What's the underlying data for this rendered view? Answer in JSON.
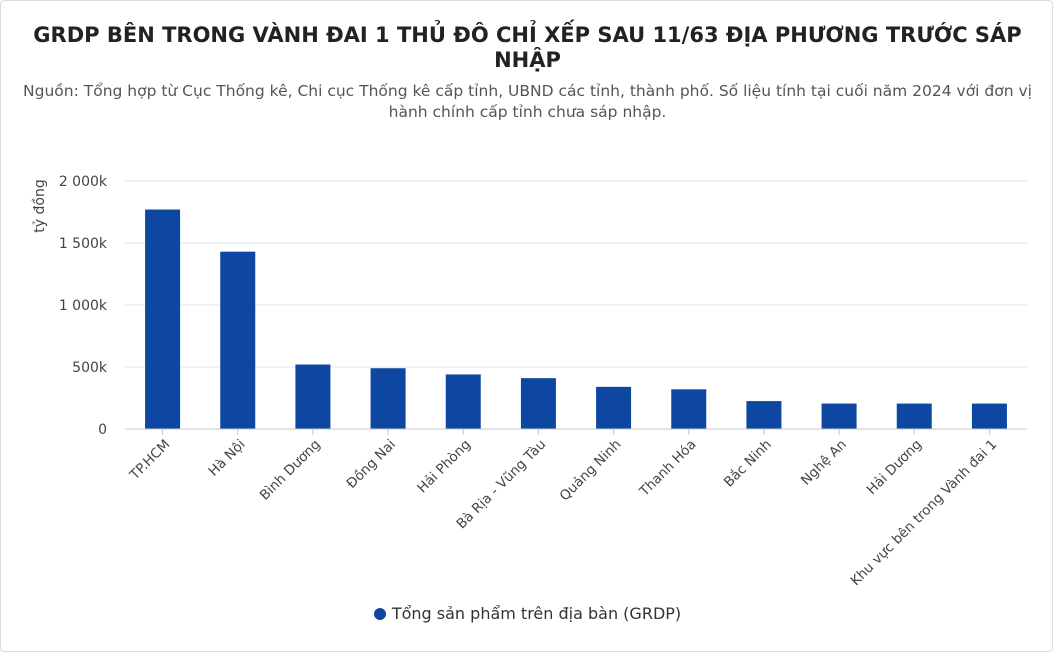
{
  "chart_data": {
    "type": "bar",
    "title": "GRDP BÊN TRONG VÀNH ĐAI 1 THỦ ĐÔ CHỈ XẾP SAU 11/63 ĐỊA PHƯƠNG TRƯỚC SÁP NHẬP",
    "subtitle_lines": [
      "Nguồn: Tổng hợp từ Cục Thống kê, Chi cục Thống kê cấp tỉnh, UBND các tỉnh, thành phố. Số liệu tính tại cuối năm 2024 với đơn vị",
      "hành chính cấp tỉnh chưa sáp nhập."
    ],
    "ylabel": "tỷ đồng",
    "xlabel": "",
    "ylim": [
      0,
      2000000
    ],
    "yticks": [
      0,
      500000,
      1000000,
      1500000,
      2000000
    ],
    "ytick_labels": [
      "0",
      "500k",
      "1 000k",
      "1 500k",
      "2 000k"
    ],
    "grid": true,
    "legend_position": "bottom",
    "categories": [
      "TP.HCM",
      "Hà Nội",
      "Bình Dương",
      "Đồng Nai",
      "Hải Phòng",
      "Bà Rịa - Vũng Tàu",
      "Quảng Ninh",
      "Thanh Hóa",
      "Bắc Ninh",
      "Nghệ An",
      "Hải Dương",
      "Khu vực bên trong Vành đai 1"
    ],
    "series": [
      {
        "name": "Tổng sản phẩm trên địa bàn (GRDP)",
        "color": "#0d47a1",
        "values": [
          1770000,
          1430000,
          520000,
          490000,
          440000,
          410000,
          340000,
          320000,
          225000,
          205000,
          205000,
          205000
        ]
      }
    ]
  }
}
